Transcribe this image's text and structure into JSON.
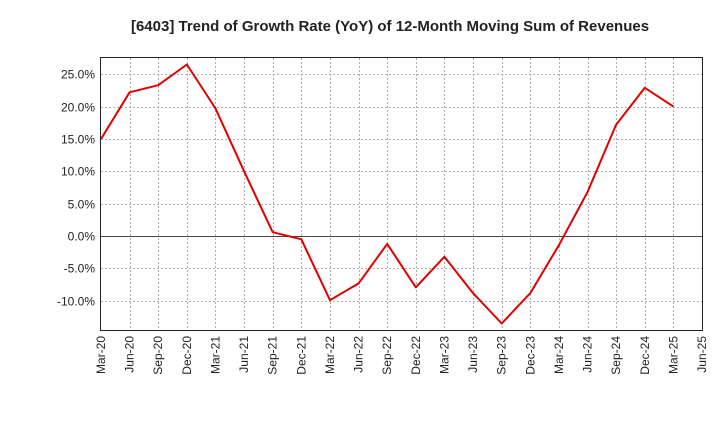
{
  "chart_data": {
    "type": "line",
    "title": "[6403]  Trend of Growth Rate (YoY) of 12-Month Moving Sum of Revenues",
    "xlabel": "",
    "ylabel": "",
    "x_ticks": [
      "Mar-20",
      "Jun-20",
      "Sep-20",
      "Dec-20",
      "Mar-21",
      "Jun-21",
      "Sep-21",
      "Dec-21",
      "Mar-22",
      "Jun-22",
      "Sep-22",
      "Dec-22",
      "Mar-23",
      "Jun-23",
      "Sep-23",
      "Dec-23",
      "Mar-24",
      "Jun-24",
      "Sep-24",
      "Dec-24",
      "Mar-25",
      "Jun-25"
    ],
    "y_ticks": [
      "25.0%",
      "20.0%",
      "15.0%",
      "10.0%",
      "5.0%",
      "0.0%",
      "-5.0%",
      "-10.0%"
    ],
    "y_tick_values": [
      25,
      20,
      15,
      10,
      5,
      0,
      -5,
      -10
    ],
    "ylim": [
      -14.5,
      27.5
    ],
    "grid": true,
    "series": [
      {
        "color": "#e00000",
        "x": [
          "Mar-20",
          "Jun-20",
          "Sep-20",
          "Dec-20",
          "Mar-21",
          "Jun-21",
          "Sep-21",
          "Dec-21",
          "Mar-22",
          "Jun-22",
          "Sep-22",
          "Dec-22",
          "Mar-23",
          "Jun-23",
          "Sep-23",
          "Dec-23",
          "Mar-24",
          "Jun-24",
          "Sep-24",
          "Dec-24",
          "Mar-25"
        ],
        "values": [
          15.0,
          22.2,
          23.3,
          26.5,
          19.7,
          10.0,
          0.6,
          -0.5,
          -9.9,
          -7.3,
          -1.2,
          -7.9,
          -3.2,
          -8.8,
          -13.5,
          -8.8,
          -1.4,
          6.8,
          17.2,
          22.9,
          20.0
        ]
      }
    ]
  }
}
